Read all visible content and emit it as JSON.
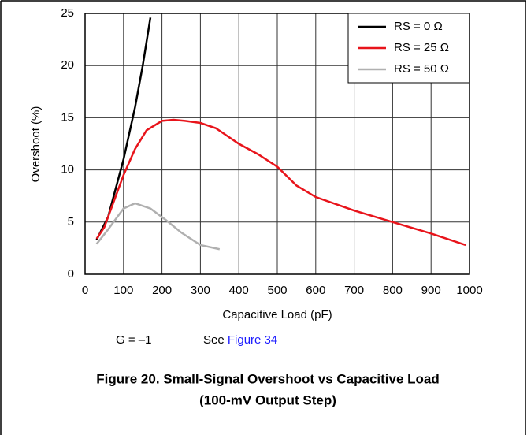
{
  "chart_data": {
    "type": "line",
    "x_label": "Capacitive Load (pF)",
    "y_label": "Overshoot (%)",
    "xlim": [
      0,
      1000
    ],
    "xticks": [
      0,
      100,
      200,
      300,
      400,
      500,
      600,
      700,
      800,
      900,
      1000
    ],
    "ylim": [
      0,
      25
    ],
    "yticks": [
      0,
      5,
      10,
      15,
      20,
      25
    ],
    "grid": true,
    "legend": "upper right",
    "series": [
      {
        "name": "RS = 0 Ω",
        "color": "#000000",
        "x": [
          30,
          60,
          100,
          130,
          150,
          170
        ],
        "values": [
          3.3,
          5.5,
          11,
          16,
          20,
          24.6
        ]
      },
      {
        "name": "RS = 25 Ω",
        "color": "#e8141b",
        "x": [
          30,
          50,
          70,
          100,
          130,
          160,
          200,
          230,
          260,
          300,
          340,
          400,
          450,
          500,
          550,
          600,
          700,
          800,
          900,
          990
        ],
        "values": [
          3.4,
          4.5,
          6.5,
          9.5,
          12,
          13.8,
          14.7,
          14.8,
          14.7,
          14.5,
          14,
          12.5,
          11.5,
          10.3,
          8.5,
          7.4,
          6.1,
          5,
          3.9,
          2.8
        ]
      },
      {
        "name": "RS = 50 Ω",
        "color": "#b0b0b0",
        "x": [
          30,
          60,
          100,
          130,
          170,
          210,
          250,
          300,
          350
        ],
        "values": [
          2.9,
          4.3,
          6.3,
          6.8,
          6.3,
          5.2,
          4,
          2.8,
          2.4
        ]
      }
    ]
  },
  "notes": {
    "gain": "G = –1",
    "see": "See",
    "link": "Figure 34"
  },
  "caption": {
    "line1": "Figure 20. Small-Signal Overshoot vs Capacitive Load",
    "line2": "(100-mV Output Step)"
  }
}
